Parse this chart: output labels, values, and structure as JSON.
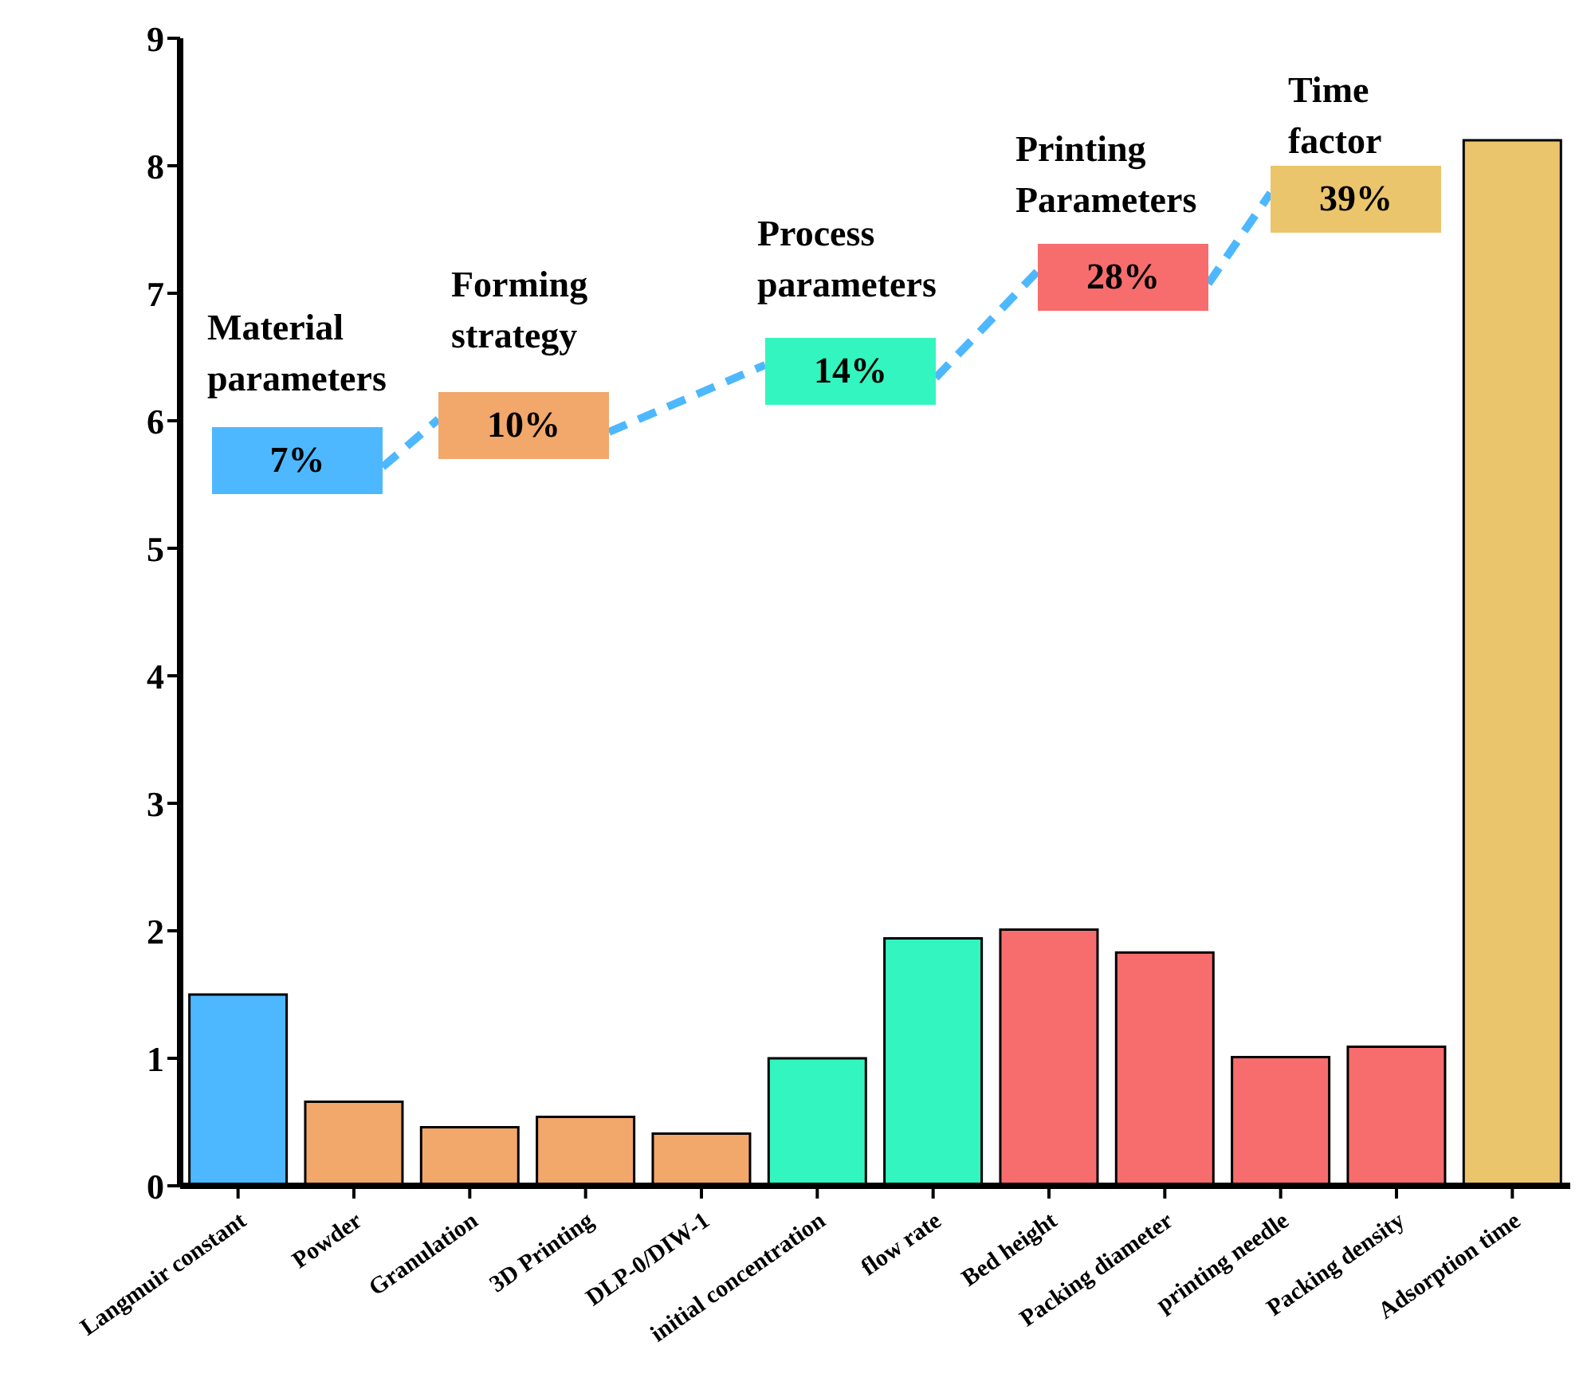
{
  "chart_data": {
    "type": "bar",
    "categories": [
      "Langmuir constant",
      "Powder",
      "Granulation",
      "3D Printing",
      "DLP-0/DIW-1",
      "initial concentration",
      "flow rate",
      "Bed  height",
      "Packing diameter",
      "printing needle",
      "Packing density",
      "Adsorption time"
    ],
    "values": [
      1.5,
      0.66,
      0.46,
      0.54,
      0.41,
      1.0,
      1.94,
      2.01,
      1.83,
      1.01,
      1.09,
      8.2
    ],
    "colors": [
      "#4db8ff",
      "#f2a76b",
      "#f2a76b",
      "#f2a76b",
      "#f2a76b",
      "#33f5bf",
      "#33f5bf",
      "#f76d6d",
      "#f76d6d",
      "#f76d6d",
      "#f76d6d",
      "#ebc56b"
    ],
    "ylim": [
      0,
      9
    ],
    "yticks": [
      0,
      1,
      2,
      3,
      4,
      5,
      6,
      7,
      8,
      9
    ],
    "annotations": [
      "Material parameters",
      "7%",
      "Forming strategy",
      "10%",
      "Process parameters",
      "14%",
      "Printing Parameters",
      "28%",
      "Time factor",
      "39%"
    ]
  }
}
